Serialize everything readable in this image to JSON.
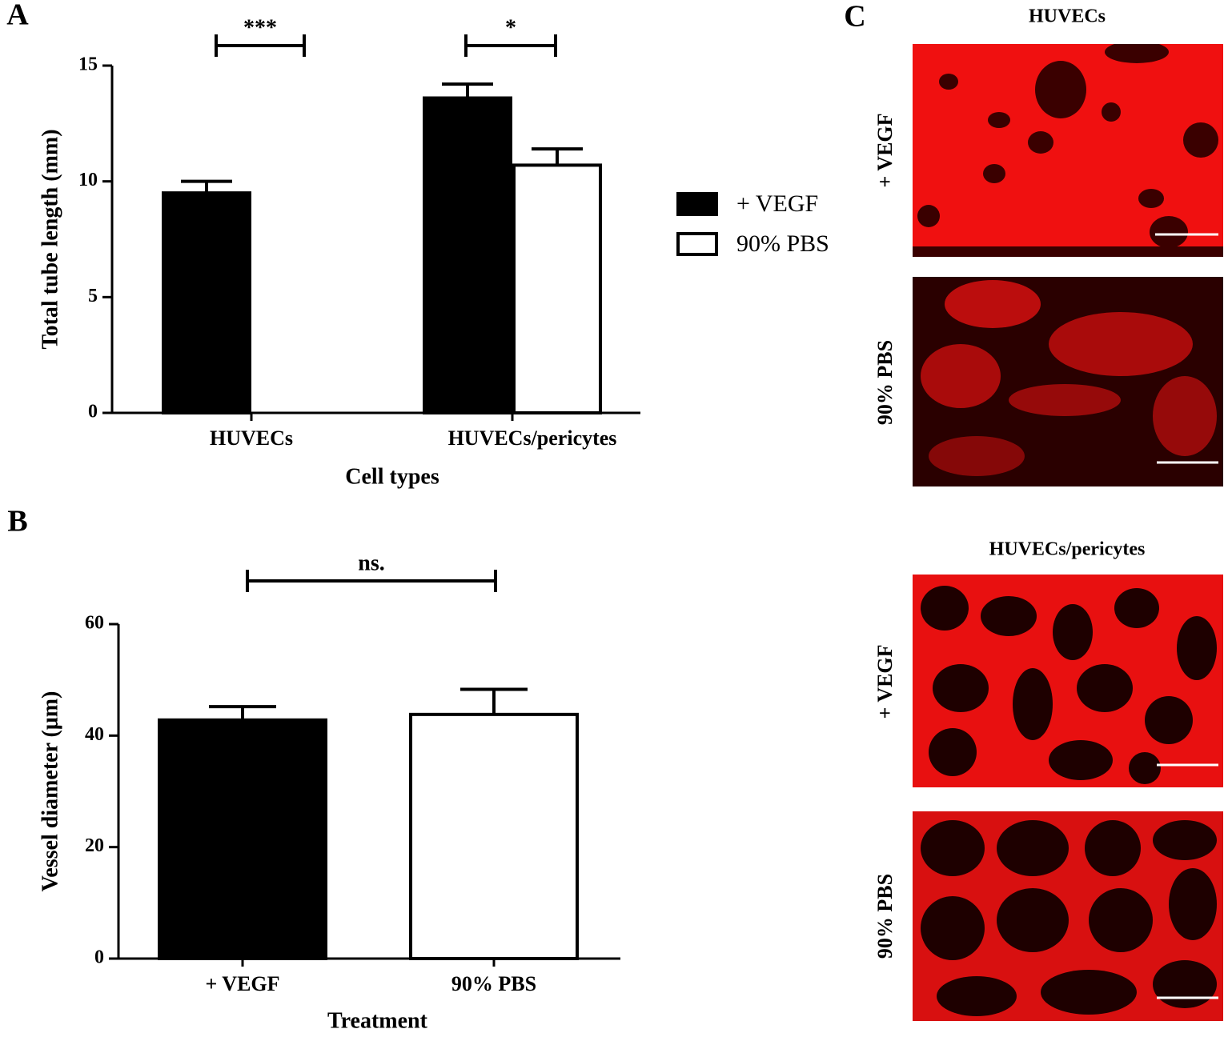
{
  "chart_data": [
    {
      "type": "bar",
      "panel": "A",
      "x_label": "Cell types",
      "y_label": "Total tube length (mm)",
      "categories": [
        "HUVECs",
        "HUVECs/pericytes"
      ],
      "series": [
        {
          "name": "+ VEGF",
          "color": "#000000",
          "values": [
            9.5,
            13.6
          ],
          "errors": [
            0.5,
            0.6
          ]
        },
        {
          "name": "90% PBS",
          "color": "#ffffff",
          "values": [
            null,
            10.7
          ],
          "errors": [
            null,
            0.7
          ]
        }
      ],
      "ylim": [
        0,
        15
      ],
      "yticks": [
        0,
        5,
        10,
        15
      ],
      "legend": "right",
      "annotations": [
        "***",
        "*"
      ]
    },
    {
      "type": "bar",
      "panel": "B",
      "x_label": "Treatment",
      "y_label": "Vessel diameter (μm)",
      "categories": [
        "+ VEGF",
        "90% PBS"
      ],
      "values": [
        42.8,
        43.8
      ],
      "errors": [
        2.4,
        4.5
      ],
      "colors": [
        "#000000",
        "#ffffff"
      ],
      "ylim": [
        0,
        60
      ],
      "yticks": [
        0,
        20,
        40,
        60
      ],
      "annotations": [
        "ns."
      ]
    }
  ],
  "panel_c": {
    "label": "C",
    "groups": [
      {
        "title": "HUVECs",
        "rows": [
          "+ VEGF",
          "90% PBS"
        ]
      },
      {
        "title": "HUVECs/pericytes",
        "rows": [
          "+ VEGF",
          "90% PBS"
        ]
      }
    ]
  }
}
